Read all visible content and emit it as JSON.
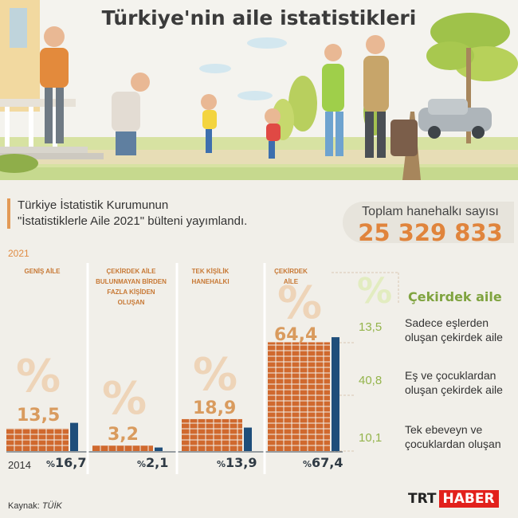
{
  "title": "Türkiye'nin aile istatistikleri",
  "subtitle": {
    "line1": "Türkiye İstatistik Kurumunun",
    "line2": "\"İstatistiklerle Aile 2021\" bülteni yayımlandı."
  },
  "total": {
    "label": "Toplam hanehalkı sayısı",
    "value": "25 329 833"
  },
  "colors": {
    "accent": "#e0843c",
    "brick": "#d0692e",
    "bar2014": "#1f4e7a",
    "green": "#7fa33f"
  },
  "chart_data": {
    "type": "bar",
    "years": [
      "2021",
      "2014"
    ],
    "categories": [
      "GENİŞ AİLE",
      "ÇEKİRDEK AİLE BULUNMAYAN BİRDEN FAZLA KİŞİDEN OLUŞAN",
      "TEK KİŞİLİK HANEHALKI",
      "ÇEKİRDEK AİLE"
    ],
    "series": [
      {
        "name": "2021",
        "values": [
          13.5,
          3.2,
          18.9,
          64.4
        ],
        "labels": [
          "13,5",
          "3,2",
          "18,9",
          "64,4"
        ]
      },
      {
        "name": "2014",
        "values": [
          16.7,
          2.1,
          13.9,
          67.4
        ],
        "labels": [
          "16,7",
          "2,1",
          "13,9",
          "67,4"
        ]
      }
    ],
    "unit": "%",
    "ylim": [
      0,
      70
    ]
  },
  "cekirdek": {
    "title": "Çekirdek aile",
    "items": [
      {
        "value": "13,5",
        "line1": "Sadece eşlerden",
        "line2": "oluşan çekirdek aile"
      },
      {
        "value": "40,8",
        "line1": "Eş ve çocuklardan",
        "line2": "oluşan çekirdek aile"
      },
      {
        "value": "10,1",
        "line1": "Tek ebeveyn ve",
        "line2": "çocuklardan oluşan"
      }
    ]
  },
  "source": {
    "label": "Kaynak:",
    "value": "TÜİK"
  },
  "logo": {
    "part1": "TRT",
    "part2": "HABER"
  }
}
